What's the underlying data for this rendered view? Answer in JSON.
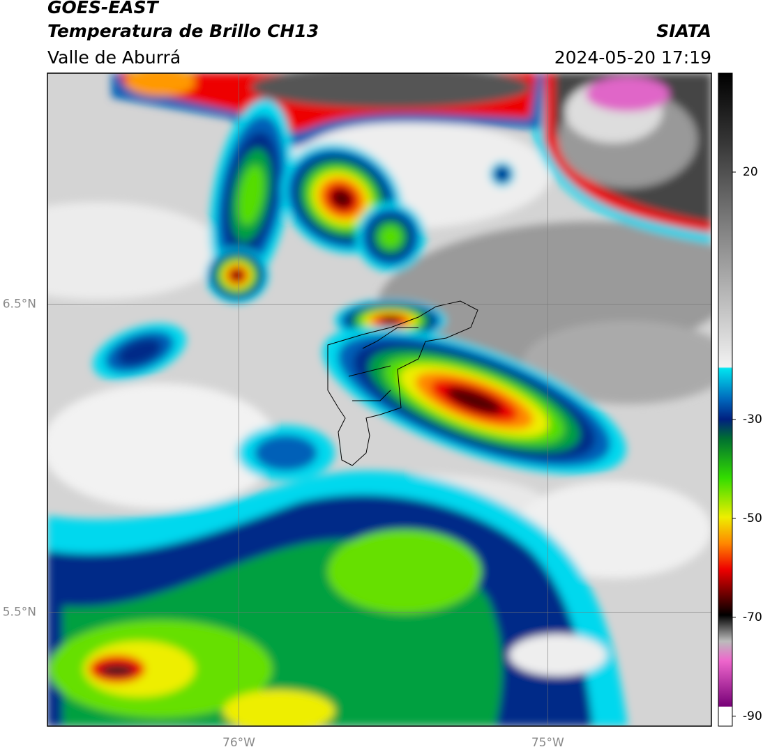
{
  "header": {
    "title": "GOES-EAST",
    "subtitle": "Temperatura de Brillo CH13",
    "region": "Valle de Aburrá",
    "source": "SIATA",
    "datetime": "2024-05-20 17:19"
  },
  "map": {
    "lon_range": [
      -76.62,
      -74.47
    ],
    "lat_range": [
      7.25,
      5.13
    ],
    "lon_ticks": [
      {
        "value": -76,
        "label": "76°W"
      },
      {
        "value": -75,
        "label": "75°W"
      }
    ],
    "lat_ticks": [
      {
        "value": 6.5,
        "label": "6.5°N"
      },
      {
        "value": 5.5,
        "label": "5.5°N"
      }
    ]
  },
  "colorbar": {
    "range": [
      -92,
      40
    ],
    "ticks": [
      20,
      -30,
      -50,
      -70,
      -90
    ]
  }
}
